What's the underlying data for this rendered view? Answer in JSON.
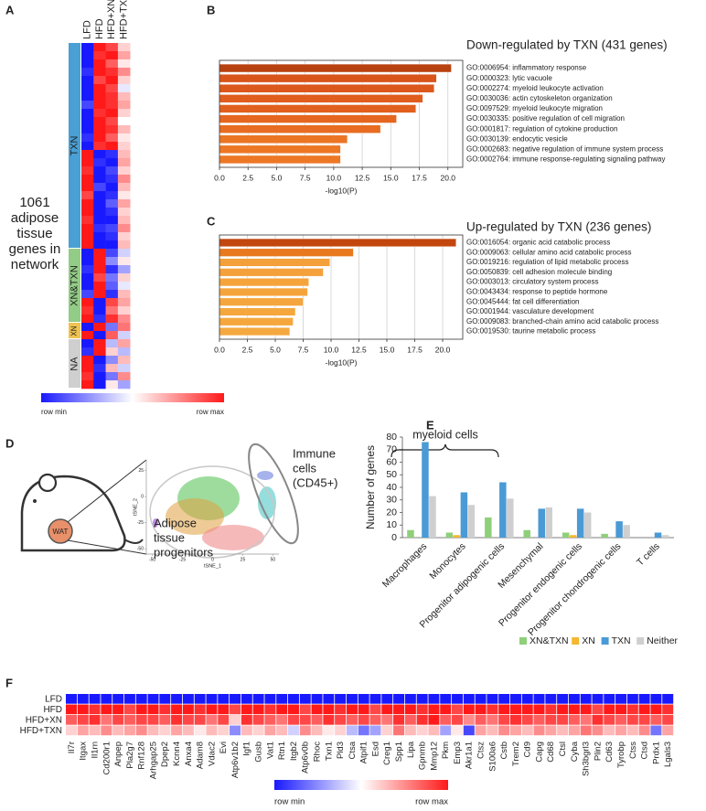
{
  "chart_data": [
    {
      "type": "heatmap",
      "panel": "A",
      "columns": [
        "LFD",
        "HFD",
        "HFD+XN",
        "HFD+TXN"
      ],
      "clim": [
        -1,
        1
      ],
      "description_lines": [
        "1061",
        "adipose",
        "tissue",
        "genes in",
        "network"
      ],
      "legend_min": "row min",
      "legend_max": "row max",
      "groups": [
        {
          "name": "TXN",
          "color": "#4a9fd4",
          "values": [
            [
              -1,
              1,
              0.8,
              0.2
            ],
            [
              -1,
              0.9,
              1,
              0.4
            ],
            [
              -1,
              1,
              0.7,
              0.1
            ],
            [
              -0.9,
              1,
              0.9,
              0.5
            ],
            [
              -1,
              0.8,
              1,
              0.2
            ],
            [
              -1,
              1,
              0.8,
              -0.1
            ],
            [
              -1,
              1,
              0.9,
              0.3
            ],
            [
              -0.8,
              1,
              0.9,
              0.4
            ],
            [
              -1,
              0.9,
              1,
              0.2
            ],
            [
              -1,
              1,
              0.8,
              0
            ],
            [
              -1,
              1,
              0.9,
              0.3
            ],
            [
              -0.9,
              1,
              0.7,
              0.1
            ],
            [
              -1,
              0.9,
              1,
              0.2
            ],
            [
              1,
              -1,
              -0.9,
              0.3
            ],
            [
              1,
              -0.9,
              -1,
              0.4
            ],
            [
              0.9,
              -1,
              -0.8,
              0.2
            ],
            [
              1,
              -1,
              -0.9,
              0.5
            ],
            [
              1,
              -0.8,
              -1,
              0.3
            ],
            [
              0.8,
              -1,
              -0.9,
              0.1
            ],
            [
              1,
              -1,
              -0.7,
              0.4
            ],
            [
              1,
              -1,
              -0.9,
              0.2
            ],
            [
              0.9,
              -1,
              -1,
              0.3
            ],
            [
              1,
              -0.9,
              -0.8,
              0.5
            ],
            [
              1,
              -1,
              -0.9,
              0.2
            ],
            [
              1,
              -1,
              -1,
              0.3
            ]
          ]
        },
        {
          "name": "XN&TXN",
          "color": "#93cc86",
          "values": [
            [
              -1,
              1,
              -0.8,
              -0.2
            ],
            [
              -1,
              1,
              -0.5,
              0.1
            ],
            [
              -0.9,
              1,
              -0.9,
              -0.4
            ],
            [
              -1,
              0.8,
              -0.6,
              0.2
            ],
            [
              -1,
              1,
              -0.7,
              -0.1
            ],
            [
              -0.8,
              1,
              -0.9,
              0.3
            ],
            [
              1,
              -1,
              0.8,
              0.4
            ],
            [
              0.9,
              -1,
              0.6,
              0.2
            ],
            [
              1,
              -0.9,
              0.9,
              0.5
            ]
          ]
        },
        {
          "name": "XN",
          "color": "#f0c24f",
          "values": [
            [
              -1,
              1,
              -0.6,
              0.6
            ],
            [
              1,
              -1,
              0.7,
              -0.2
            ]
          ]
        },
        {
          "name": "NA",
          "color": "#cfcfcf",
          "values": [
            [
              -1,
              1,
              -0.3,
              0.4
            ],
            [
              -0.9,
              1,
              0.2,
              -0.3
            ],
            [
              1,
              -1,
              -0.5,
              0.3
            ],
            [
              1,
              -0.9,
              0.3,
              -0.2
            ],
            [
              0.9,
              -1,
              -0.6,
              0.5
            ],
            [
              1,
              -1,
              0.1,
              -0.4
            ]
          ]
        }
      ]
    },
    {
      "type": "barh",
      "panel": "B",
      "title": "Down-regulated by TXN (431 genes)",
      "categories": [
        "GO:0006954: inflammatory response",
        "GO:0000323: lytic vacuole",
        "GO:0002274: myeloid leukocyte activation",
        "GO:0030036: actin cytoskeleton organization",
        "GO:0097529: myeloid leukocyte migration",
        "GO:0030335: positive regulation of cell migration",
        "GO:0001817: regulation of cytokine production",
        "GO:0030139: endocytic vesicle",
        "GO:0002683: negative regulation of immune system process",
        "GO:0002764: immune response-regulating signaling pathway"
      ],
      "values": [
        20.3,
        19.0,
        18.8,
        17.8,
        17.2,
        15.5,
        14.1,
        11.2,
        10.6,
        10.6
      ],
      "colors": [
        "#b8420f",
        "#d9541a",
        "#dc571b",
        "#e05d1d",
        "#e2601e",
        "#e5661f",
        "#e86c21",
        "#ec7524",
        "#ed7725",
        "#ed7725"
      ],
      "xlim": [
        0,
        21.3
      ],
      "xticks": [
        {
          "value": 0,
          "label": "0.0"
        },
        2.5,
        {
          "value": 5,
          "label": "5.0"
        },
        7.5,
        {
          "value": 10,
          "label": "10.0"
        },
        12.5,
        {
          "value": 15,
          "label": "15.0"
        },
        17.5,
        {
          "value": 20,
          "label": "20.0"
        }
      ],
      "xlabel": "-log10(P)",
      "grid": true
    },
    {
      "type": "barh",
      "panel": "C",
      "title": "Up-regulated by TXN (236 genes)",
      "categories": [
        "GO:0016054: organic acid catabolic process",
        "GO:0009063: cellular amino acid catabolic process",
        "GO:0019216: regulation of lipid metabolic process",
        "GO:0050839: cell adhesion molecule binding",
        "GO:0003013: circulatory system process",
        "GO:0043434: response to peptide hormone",
        "GO:0045444: fat cell differentiation",
        "GO:0001944: vasculature development",
        "GO:0009083: branched-chain amino acid catabolic process",
        "GO:0019530: taurine metabolic process"
      ],
      "values": [
        21.2,
        12.0,
        9.9,
        9.3,
        8.0,
        7.9,
        7.5,
        6.8,
        6.6,
        6.3
      ],
      "colors": [
        "#c2470f",
        "#e8791f",
        "#f4a03a",
        "#f4a13b",
        "#f5a43c",
        "#f5a43c",
        "#f5a53d",
        "#f5a73e",
        "#f5a73e",
        "#f5a83f"
      ],
      "xlim": [
        0,
        21.8
      ],
      "xticks": [
        {
          "value": 0,
          "label": "0.0"
        },
        2.5,
        {
          "value": 5,
          "label": "5.0"
        },
        7.5,
        {
          "value": 10,
          "label": "10.0"
        },
        12.5,
        {
          "value": 15,
          "label": "15.0"
        },
        17.5,
        {
          "value": 20,
          "label": "20.0"
        }
      ],
      "xlabel": "-log10(P)",
      "grid": true
    },
    {
      "type": "tsne",
      "panel": "D",
      "icon_label": "WAT",
      "xlabel": "tSNE_1",
      "ylabel": "tSNE_2",
      "xlim": [
        -55,
        55
      ],
      "ylim": [
        -55,
        35
      ],
      "xticks": [
        -50,
        -25,
        0,
        25,
        50
      ],
      "yticks": [
        -50,
        -25,
        0,
        25
      ],
      "annotations": [
        {
          "lines": [
            "Immune",
            "cells",
            "(CD45+)"
          ]
        },
        {
          "lines": [
            "Adipose",
            "tissue",
            "progenitors"
          ]
        }
      ]
    },
    {
      "type": "bar",
      "panel": "E",
      "categories": [
        "Macrophages",
        "Monocytes",
        "Progenitor adipogenic cells",
        "Mesenchymal",
        "Progenitor endogenic cells",
        "Progenitor chondrogenic cells",
        "T cells"
      ],
      "series": [
        {
          "name": "XN&TXN",
          "color": "#8fcf7a",
          "values": [
            6,
            4,
            16,
            6,
            4,
            3,
            0
          ]
        },
        {
          "name": "XN",
          "color": "#f5b731",
          "values": [
            0,
            2,
            0,
            0,
            2,
            0,
            0
          ]
        },
        {
          "name": "TXN",
          "color": "#4a9ad6",
          "values": [
            76,
            36,
            44,
            23,
            23,
            13,
            4
          ]
        },
        {
          "name": "Neither",
          "color": "#cfcfcf",
          "values": [
            33,
            26,
            31,
            24,
            20,
            10,
            2
          ]
        }
      ],
      "ylim": [
        0,
        80
      ],
      "yticks": [
        0,
        10,
        20,
        30,
        40,
        50,
        60,
        70,
        80
      ],
      "ylabel": "Number of genes",
      "annotation": "myeloid cells",
      "legend": "bottom"
    },
    {
      "type": "heatmap",
      "panel": "F",
      "rows": [
        "LFD",
        "HFD",
        "HFD+XN",
        "HFD+TXN"
      ],
      "columns": [
        "Il7r",
        "Itgax",
        "Il1rn",
        "Cd200r1",
        "Anpep",
        "Pla2g7",
        "Rnf128",
        "Arhgap25",
        "Dpep2",
        "Kcnn4",
        "Anxa4",
        "Adam8",
        "Vdac2",
        "Evi",
        "Atp6v1b2",
        "Igf1",
        "Gusb",
        "Vat1",
        "Rtn1",
        "Itgb2",
        "Atp6v0b",
        "Rhoc",
        "Txn1",
        "Pld3",
        "Ctsa",
        "Atpif1",
        "Esd",
        "Creg1",
        "Spp1",
        "Lipa",
        "Gpnmb",
        "Mmp12",
        "Pkm",
        "Emp3",
        "Akr1a1",
        "Ctsz",
        "S100a6",
        "Cstb",
        "Trem2",
        "Cd9",
        "Capg",
        "Cd68",
        "Ctsl",
        "Cyba",
        "Sh3bgrl3",
        "Plin2",
        "Cd63",
        "Tyrobp",
        "Ctss",
        "Ctsd",
        "Prdx1",
        "Lgals3"
      ],
      "clim": [
        -1,
        1
      ],
      "legend_min": "row min",
      "legend_max": "row max",
      "values": [
        [
          -1,
          -1,
          -1,
          -1,
          -1,
          -1,
          -1,
          -1,
          -1,
          -1,
          -1,
          -1,
          -1,
          -1,
          -1,
          -1,
          -1,
          -1,
          -1,
          -1,
          -1,
          -1,
          -1,
          -1,
          -1,
          -1,
          -1,
          -1,
          -1,
          -1,
          -1,
          -1,
          -1,
          -1,
          -1,
          -1,
          -1,
          -1,
          -1,
          -1,
          -1,
          -1,
          -1,
          -1,
          -1,
          -1,
          -1,
          -1,
          -1,
          -1,
          -1,
          -1
        ],
        [
          1,
          1,
          0.9,
          1,
          1,
          0.8,
          1,
          1,
          0.9,
          1,
          1,
          0.9,
          1,
          1,
          0.8,
          1,
          1,
          0.9,
          1,
          1,
          0.8,
          1,
          1,
          0.9,
          1,
          1,
          0.8,
          1,
          1,
          1,
          0.9,
          1,
          1,
          0.8,
          1,
          1,
          0.9,
          1,
          1,
          1,
          1,
          0.9,
          1,
          1,
          1,
          0.8,
          1,
          1,
          0.9,
          1,
          1,
          0.9
        ],
        [
          0.7,
          0.8,
          0.9,
          0.6,
          0.8,
          0.7,
          0.8,
          0.8,
          0.7,
          0.9,
          0.8,
          0.8,
          0.6,
          0.8,
          0.2,
          0.9,
          0.8,
          0.7,
          0.6,
          0.8,
          0.8,
          0.7,
          0.9,
          0.8,
          0.7,
          0.8,
          0.7,
          0.6,
          0.9,
          0.7,
          0.9,
          1,
          0.7,
          0.8,
          0.5,
          0.7,
          0.6,
          0.8,
          0.9,
          0.8,
          0.7,
          0.8,
          0.8,
          0.7,
          0.6,
          0.9,
          0.8,
          0.7,
          0.8,
          0.8,
          0.7,
          0.8
        ],
        [
          0.2,
          0.4,
          0.3,
          0.5,
          0.3,
          0.4,
          0.5,
          0.3,
          0.2,
          0.4,
          0.3,
          0.1,
          0.3,
          0.2,
          -0.5,
          0.3,
          0.2,
          0.4,
          0.3,
          -0.2,
          0.5,
          0.3,
          0.1,
          0.2,
          -0.3,
          -0.6,
          -0.4,
          0.2,
          0.6,
          0.3,
          0.2,
          0.3,
          -0.4,
          0.1,
          -0.8,
          0.4,
          0.3,
          0.5,
          0.4,
          0.3,
          0.5,
          0.4,
          0.3,
          0.4,
          0.6,
          0.5,
          0.3,
          0.4,
          0.3,
          0.5,
          -0.6,
          0.4
        ]
      ]
    }
  ]
}
